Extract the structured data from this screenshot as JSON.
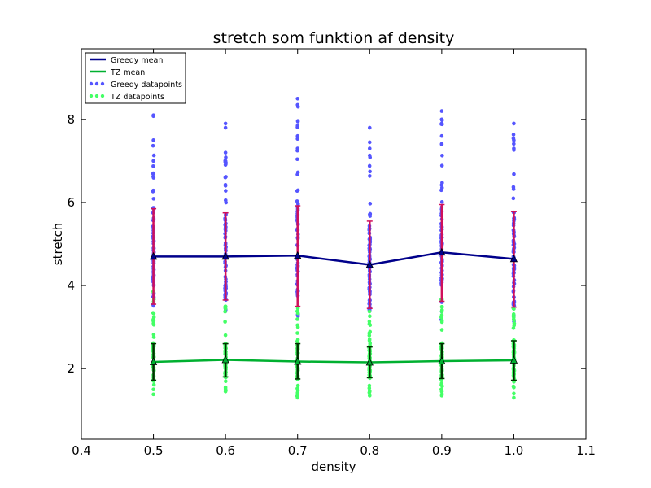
{
  "chart_data": {
    "type": "scatter",
    "title": "stretch som funktion af density",
    "xlabel": "density",
    "ylabel": "stretch",
    "xlim": [
      0.4,
      1.1
    ],
    "ylim": [
      0.3,
      9.7
    ],
    "xticks": [
      0.4,
      0.5,
      0.6,
      0.7,
      0.8,
      0.9,
      1.0,
      1.1
    ],
    "xtick_labels": [
      "0.4",
      "0.5",
      "0.6",
      "0.7",
      "0.8",
      "0.9",
      "1.0",
      "1.1"
    ],
    "yticks": [
      2,
      4,
      6,
      8
    ],
    "ytick_labels": [
      "2",
      "4",
      "6",
      "8"
    ],
    "grid": false,
    "legend_position": "top-left",
    "legend": [
      {
        "label": "Greedy mean",
        "kind": "line",
        "color": "#00008b"
      },
      {
        "label": "TZ mean",
        "kind": "line",
        "color": "#00b030"
      },
      {
        "label": "Greedy datapoints",
        "kind": "points",
        "color": "#5555ff"
      },
      {
        "label": "TZ datapoints",
        "kind": "points",
        "color": "#44ff66"
      }
    ],
    "x": [
      0.5,
      0.6,
      0.7,
      0.8,
      0.9,
      1.0
    ],
    "series": [
      {
        "name": "Greedy mean",
        "color": "#00008b",
        "errorbar_color": "#d0105a",
        "values": [
          4.7,
          4.7,
          4.72,
          4.5,
          4.8,
          4.64
        ],
        "err_low": [
          3.55,
          3.65,
          3.5,
          3.45,
          3.62,
          3.48
        ],
        "err_high": [
          5.85,
          5.75,
          5.92,
          5.55,
          5.95,
          5.78
        ],
        "points_range": [
          {
            "min": 3.4,
            "max": 8.1
          },
          {
            "min": 3.3,
            "max": 7.9
          },
          {
            "min": 3.2,
            "max": 8.5
          },
          {
            "min": 3.3,
            "max": 7.8
          },
          {
            "min": 3.1,
            "max": 8.2
          },
          {
            "min": 3.1,
            "max": 7.9
          }
        ],
        "outliers": [
          [
            8.1,
            7.5,
            7.0
          ],
          [
            7.9,
            7.8,
            7.2,
            7.0
          ],
          [
            8.5,
            8.35,
            7.85,
            7.6,
            7.3
          ],
          [
            7.8,
            7.45,
            7.3
          ],
          [
            8.2,
            8.0,
            7.9,
            7.6,
            7.4
          ],
          [
            7.9,
            7.5,
            7.3
          ]
        ]
      },
      {
        "name": "TZ mean",
        "color": "#00b030",
        "errorbar_color": "#003300",
        "values": [
          2.16,
          2.21,
          2.17,
          2.15,
          2.18,
          2.2
        ],
        "err_low": [
          1.72,
          1.8,
          1.75,
          1.78,
          1.76,
          1.72
        ],
        "err_high": [
          2.6,
          2.6,
          2.6,
          2.52,
          2.6,
          2.67
        ],
        "points_range": [
          {
            "min": 1.4,
            "max": 3.9
          },
          {
            "min": 1.45,
            "max": 3.6
          },
          {
            "min": 1.3,
            "max": 3.5
          },
          {
            "min": 1.35,
            "max": 3.4
          },
          {
            "min": 1.35,
            "max": 3.7
          },
          {
            "min": 1.3,
            "max": 3.5
          }
        ],
        "outliers": [
          [
            1.38,
            1.5
          ],
          [
            1.45,
            1.55
          ],
          [
            1.3,
            1.42
          ],
          [
            1.35,
            1.45
          ],
          [
            1.35,
            1.45
          ],
          [
            1.3,
            1.4
          ]
        ]
      }
    ]
  }
}
